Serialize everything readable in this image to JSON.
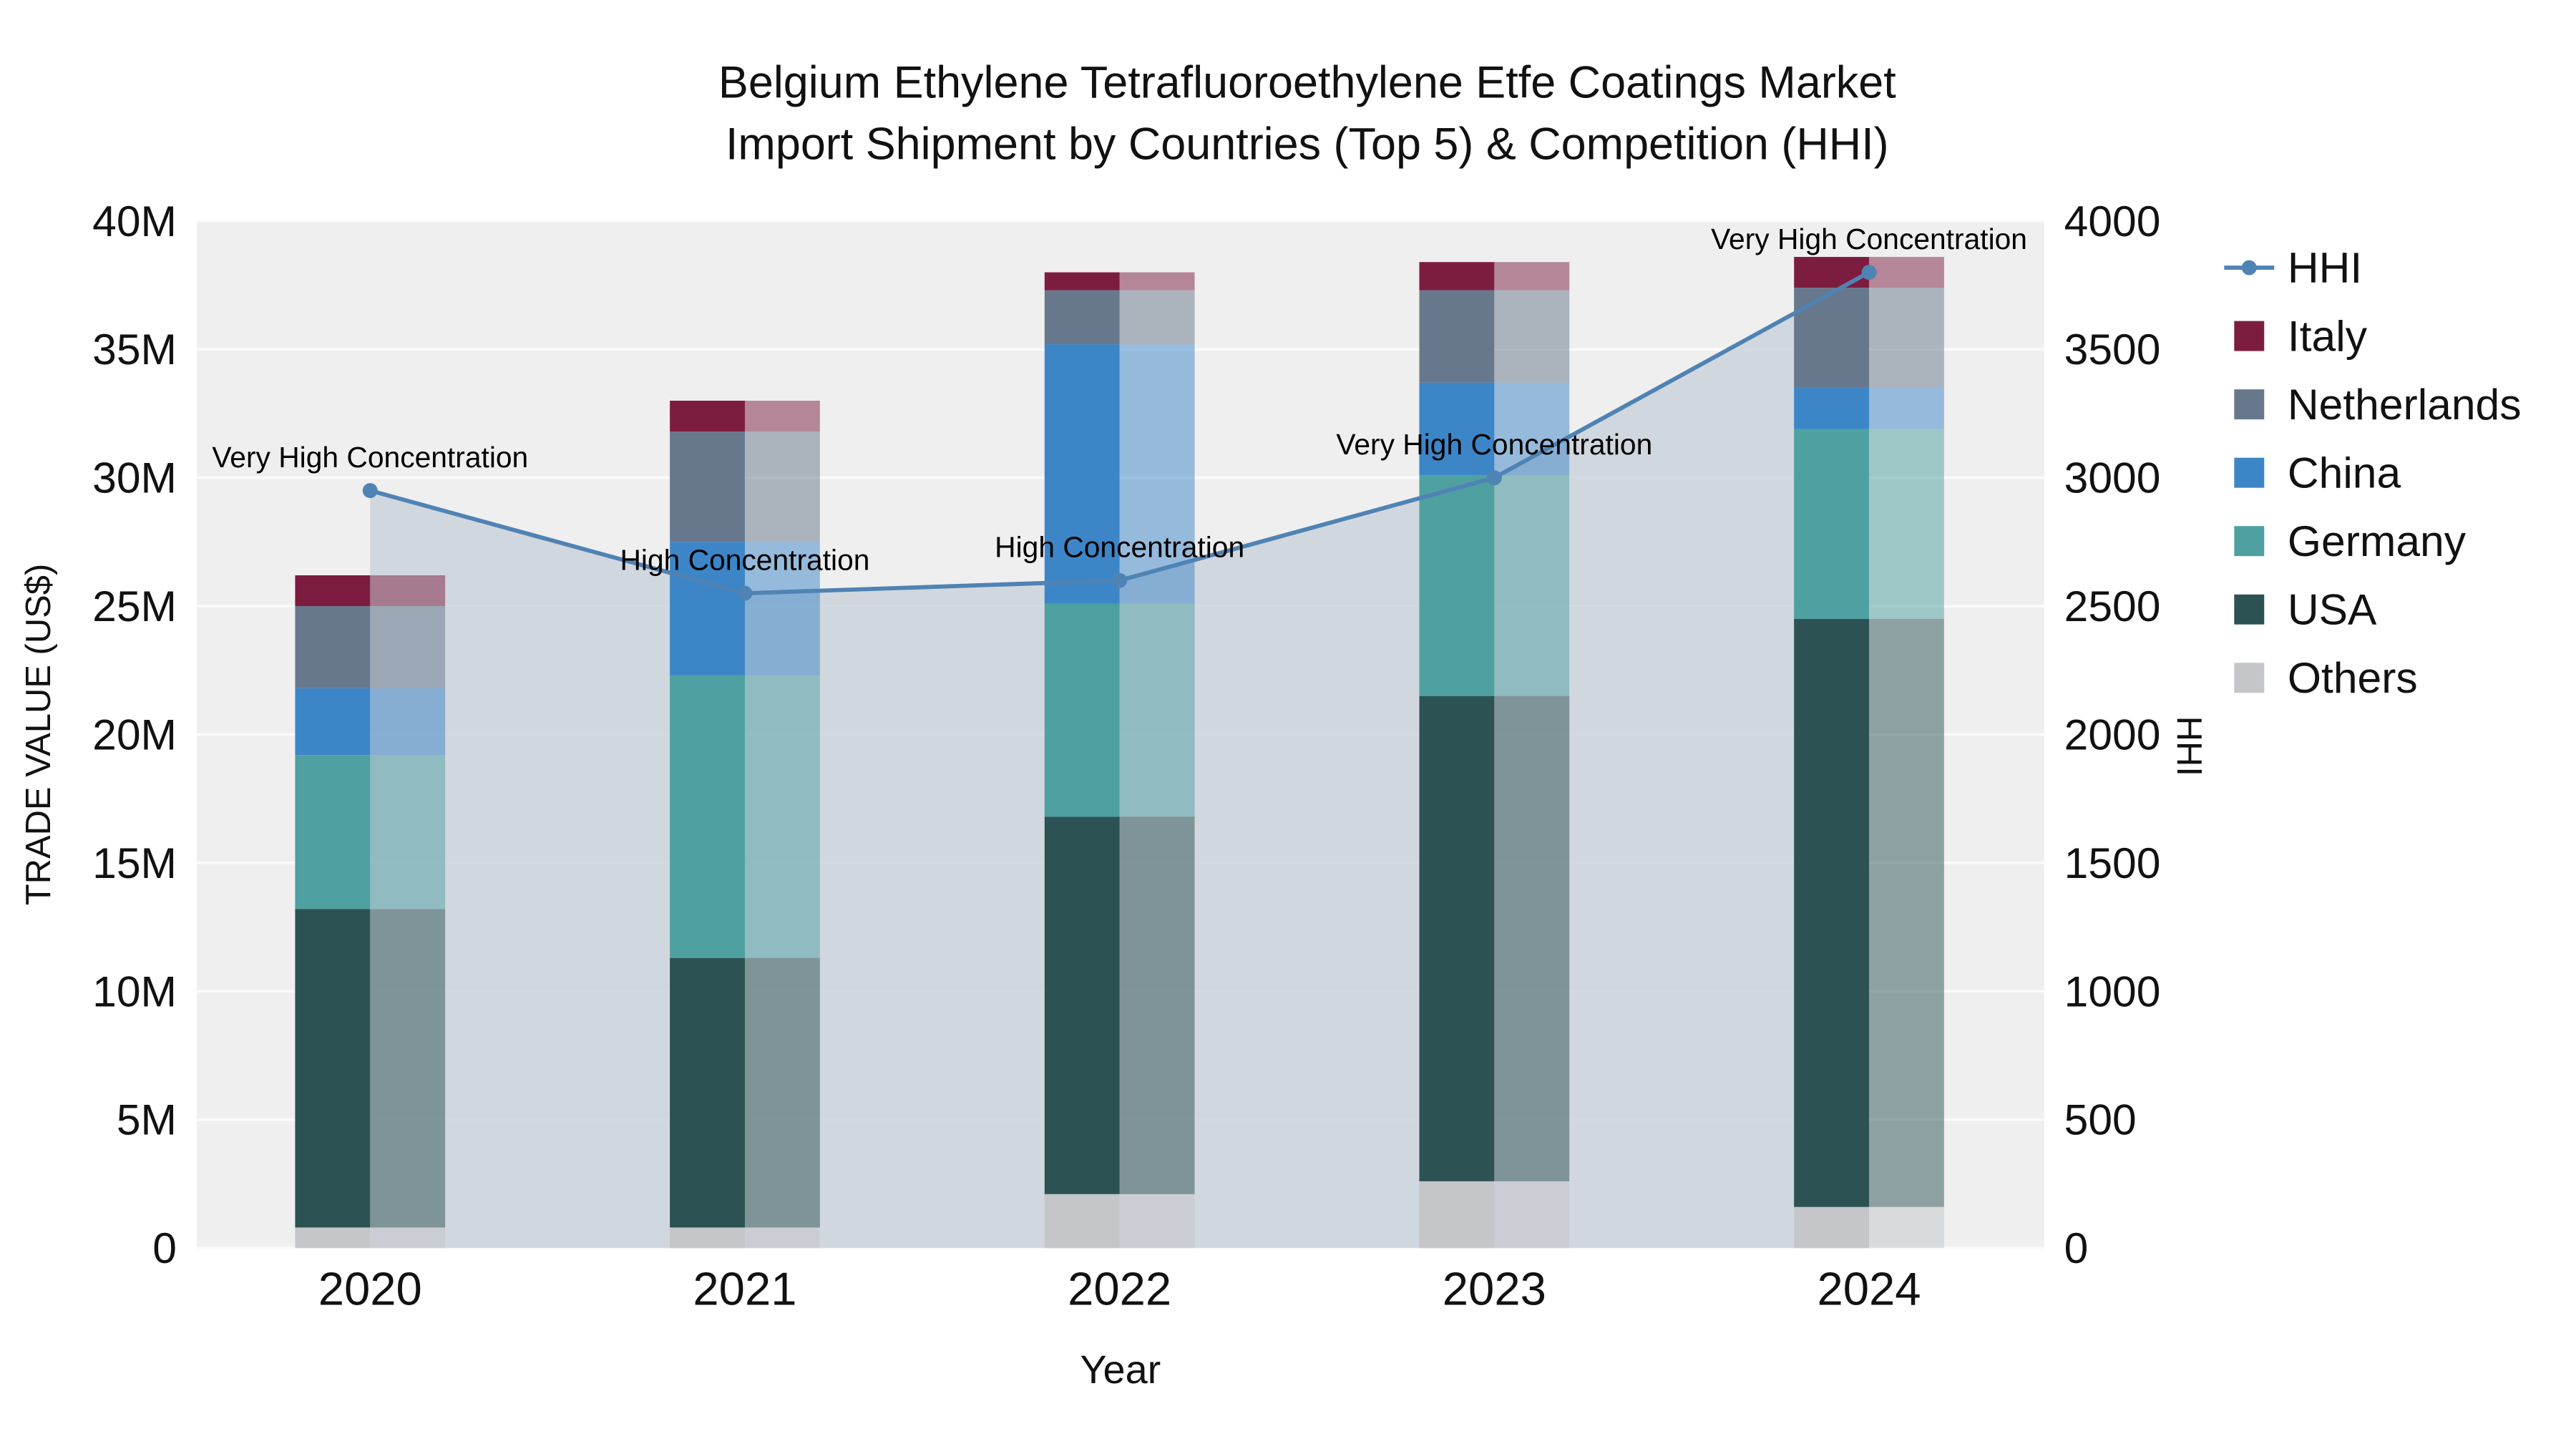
{
  "chart_data": {
    "type": "bar",
    "subtype": "stacked-bar-with-secondary-axis-line",
    "title_line1": "Belgium Ethylene Tetrafluoroethylene Etfe Coatings Market",
    "title_line2": "Import Shipment by Countries (Top 5) & Competition (HHI)",
    "xlabel": "Year",
    "ylabel_left": "TRADE VALUE (US$)",
    "ylabel_right": "HHI",
    "categories": [
      "2020",
      "2021",
      "2022",
      "2023",
      "2024"
    ],
    "left_axis": {
      "unit": "US$ millions",
      "min": 0,
      "max": 40,
      "ticks": [
        0,
        5,
        10,
        15,
        20,
        25,
        30,
        35,
        40
      ],
      "tick_labels": [
        "0",
        "5M",
        "10M",
        "15M",
        "20M",
        "25M",
        "30M",
        "35M",
        "40M"
      ]
    },
    "right_axis": {
      "min": 0,
      "max": 4000,
      "ticks": [
        0,
        500,
        1000,
        1500,
        2000,
        2500,
        3000,
        3500,
        4000
      ],
      "tick_labels": [
        "0",
        "500",
        "1000",
        "1500",
        "2000",
        "2500",
        "3000",
        "3500",
        "4000"
      ]
    },
    "stack_order_bottom_to_top": [
      "Others",
      "USA",
      "Germany",
      "China",
      "Netherlands",
      "Italy"
    ],
    "series": [
      {
        "name": "Others",
        "color": "#c4c6c9",
        "values_musd": [
          0.8,
          0.8,
          2.1,
          2.6,
          1.6
        ]
      },
      {
        "name": "USA",
        "color": "#2d5253",
        "values_musd": [
          12.4,
          10.5,
          14.7,
          18.9,
          22.9
        ]
      },
      {
        "name": "Germany",
        "color": "#4fa0a1",
        "values_musd": [
          6.0,
          11.0,
          8.3,
          8.6,
          7.4
        ]
      },
      {
        "name": "China",
        "color": "#3c86c8",
        "values_musd": [
          2.6,
          5.2,
          10.1,
          3.6,
          1.6
        ]
      },
      {
        "name": "Netherlands",
        "color": "#68788c",
        "values_musd": [
          3.2,
          4.3,
          2.1,
          3.6,
          3.9
        ]
      },
      {
        "name": "Italy",
        "color": "#7c1d40",
        "values_musd": [
          1.2,
          1.2,
          0.7,
          1.1,
          1.2
        ]
      }
    ],
    "hhi_line": {
      "name": "HHI",
      "color": "#4f83b4",
      "area_fill_color": "#cbd2db",
      "values": [
        2950,
        2550,
        2600,
        3000,
        3800
      ],
      "annotations": [
        "Very High Concentration",
        "High Concentration",
        "High Concentration",
        "Very High Concentration",
        "Very High Concentration"
      ]
    },
    "legend": [
      "HHI",
      "Italy",
      "Netherlands",
      "China",
      "Germany",
      "USA",
      "Others"
    ],
    "legend_position": "right"
  }
}
